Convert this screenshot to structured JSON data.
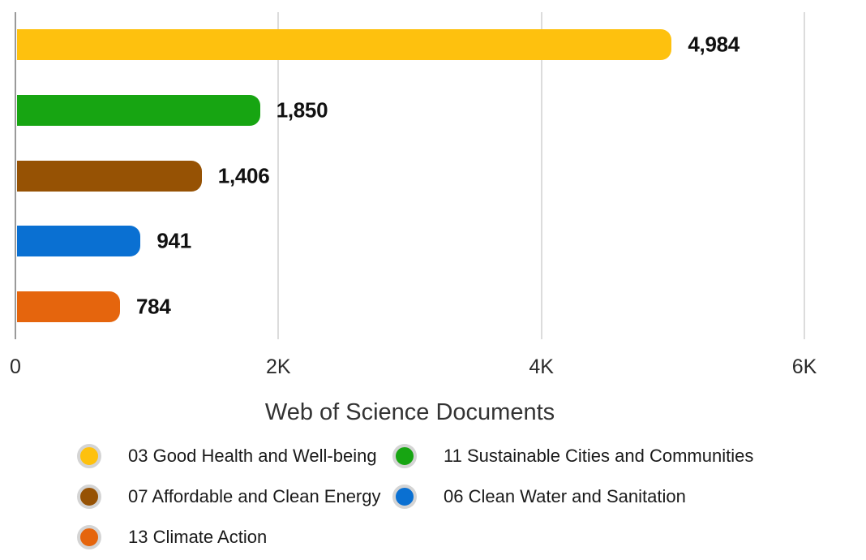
{
  "chart_data": {
    "type": "bar",
    "orientation": "horizontal",
    "title": "",
    "xlabel": "Web of Science Documents",
    "ylabel": "",
    "xlim": [
      0,
      6000
    ],
    "grid": true,
    "legend_position": "bottom",
    "categories": [
      "03 Good Health and Well-being",
      "11 Sustainable Cities and Communities",
      "07 Affordable and Clean Energy",
      "06 Clean Water and Sanitation",
      "13 Climate Action"
    ],
    "values": [
      4984,
      1850,
      1406,
      941,
      784
    ],
    "value_labels": [
      "4,984",
      "1,850",
      "1,406",
      "941",
      "784"
    ],
    "colors": [
      "#FEC10E",
      "#17A512",
      "#965204",
      "#0A70D2",
      "#E5650D"
    ],
    "x_ticks": [
      "0",
      "2K",
      "4K",
      "6K"
    ],
    "x_tick_values": [
      0,
      2000,
      4000,
      6000
    ]
  },
  "style_colors": {
    "gridline": "#dcdcdc",
    "axis_line": "#9a9a9a",
    "legend_ring": "#d4d4d4"
  }
}
